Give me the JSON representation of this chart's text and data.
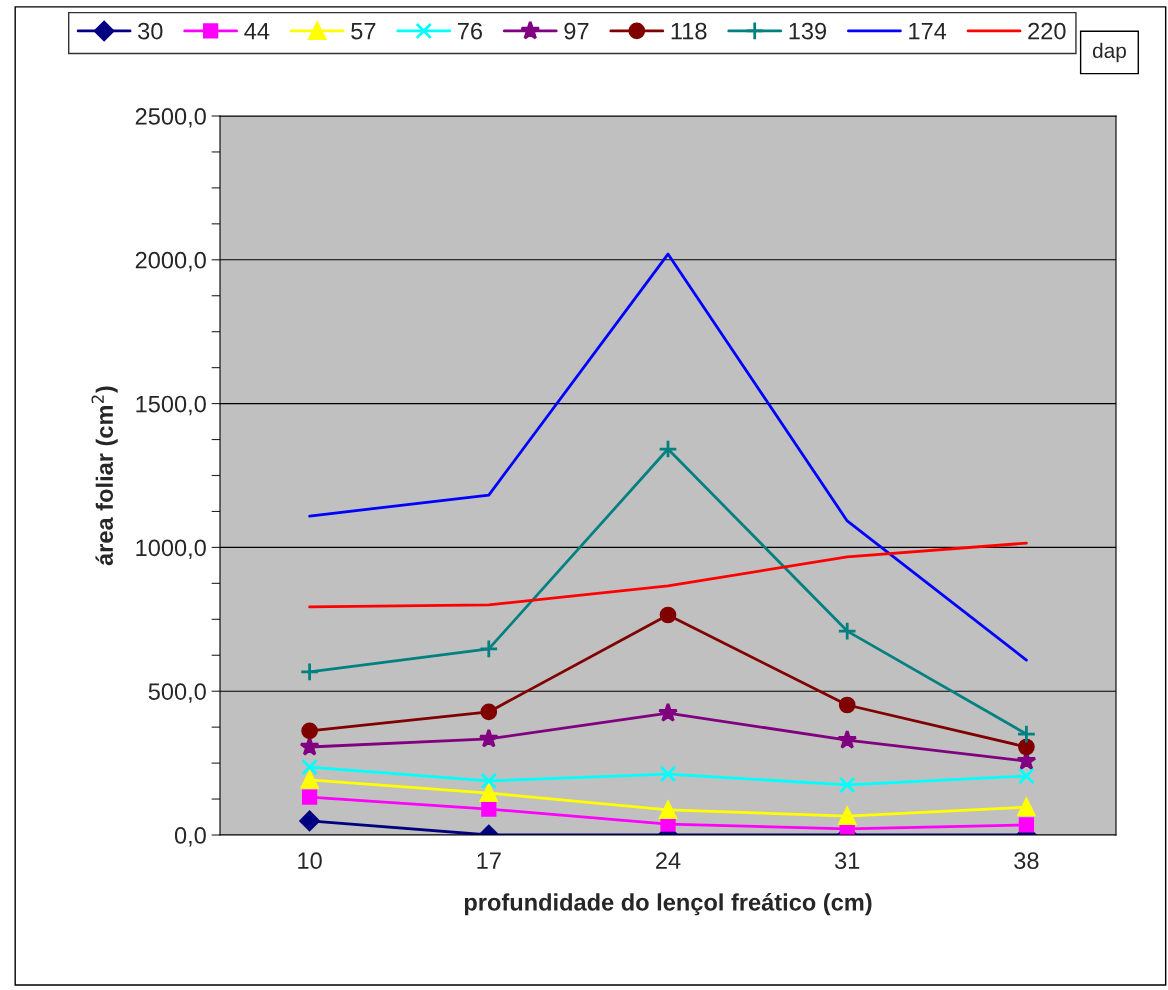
{
  "chart_data": {
    "type": "line",
    "xlabel": "profundidade do lençol freático (cm)",
    "ylabel": "área foliar (cm$^{2}$)",
    "legend_title": "dap",
    "legend": "top",
    "categories": [
      "10",
      "17",
      "24",
      "31",
      "38"
    ],
    "ylim": [
      0,
      2500
    ],
    "yticks": [
      {
        "value": 0,
        "label": "0,0"
      },
      {
        "value": 125,
        "label": null
      },
      {
        "value": 250,
        "label": null
      },
      {
        "value": 375,
        "label": null
      },
      {
        "value": 500,
        "label": "500,0"
      },
      {
        "value": 625,
        "label": null
      },
      {
        "value": 750,
        "label": null
      },
      {
        "value": 875,
        "label": null
      },
      {
        "value": 1000,
        "label": "1000,0"
      },
      {
        "value": 1125,
        "label": null
      },
      {
        "value": 1250,
        "label": null
      },
      {
        "value": 1375,
        "label": null
      },
      {
        "value": 1500,
        "label": "1500,0"
      },
      {
        "value": 1625,
        "label": null
      },
      {
        "value": 1750,
        "label": null
      },
      {
        "value": 1875,
        "label": null
      },
      {
        "value": 2000,
        "label": "2000,0"
      },
      {
        "value": 2125,
        "label": null
      },
      {
        "value": 2250,
        "label": null
      },
      {
        "value": 2375,
        "label": null
      },
      {
        "value": 2500,
        "label": "2500,0"
      }
    ],
    "grid": "y",
    "series": [
      {
        "name": "30",
        "color": "#000080",
        "marker": "diamond",
        "values": [
          49,
          0,
          0,
          0,
          0
        ]
      },
      {
        "name": "44",
        "color": "#ff00ff",
        "marker": "square",
        "values": [
          132,
          90,
          38,
          21,
          35
        ]
      },
      {
        "name": "57",
        "color": "#ffff00",
        "marker": "triangle",
        "values": [
          192,
          146,
          87,
          66,
          97
        ]
      },
      {
        "name": "76",
        "color": "#00ffff",
        "marker": "cross",
        "values": [
          236,
          188,
          212,
          174,
          205
        ]
      },
      {
        "name": "97",
        "color": "#800080",
        "marker": "star",
        "values": [
          306,
          334,
          424,
          330,
          257
        ]
      },
      {
        "name": "118",
        "color": "#800000",
        "marker": "circle",
        "values": [
          362,
          428,
          765,
          452,
          306
        ]
      },
      {
        "name": "139",
        "color": "#008080",
        "marker": "plus",
        "values": [
          567,
          647,
          1342,
          709,
          351
        ]
      },
      {
        "name": "174",
        "color": "#0000ff",
        "marker": "none",
        "values": [
          1109,
          1182,
          2020,
          1092,
          608
        ]
      },
      {
        "name": "220",
        "color": "#ff0000",
        "marker": "none",
        "values": [
          793,
          800,
          866,
          967,
          1015
        ]
      }
    ]
  }
}
